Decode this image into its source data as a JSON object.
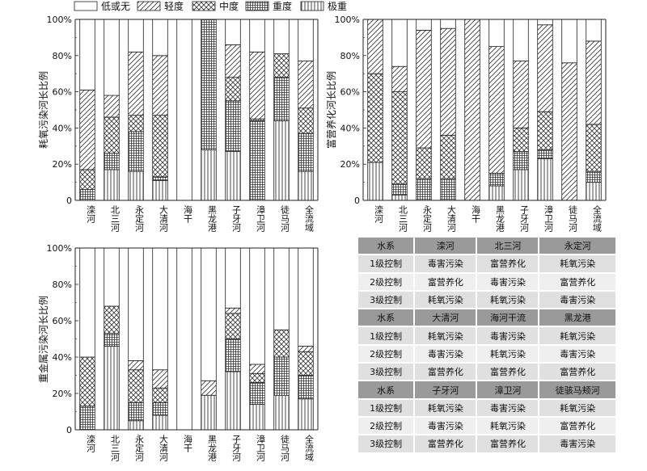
{
  "legend": [
    {
      "key": "none",
      "label": "低或无"
    },
    {
      "key": "light",
      "label": "轻度"
    },
    {
      "key": "medium",
      "label": "中度"
    },
    {
      "key": "heavy",
      "label": "重度"
    },
    {
      "key": "extreme",
      "label": "极重"
    }
  ],
  "chart_data": [
    {
      "type": "bar",
      "stacked": true,
      "ylabel": "耗氧污染河长比例",
      "ylim": [
        0,
        100
      ],
      "yticks": [
        "0",
        "20%",
        "40%",
        "60%",
        "80%",
        "100%"
      ],
      "categories": [
        "滦河",
        "北三河",
        "永定河",
        "大清河",
        "海干",
        "黑龙港",
        "子牙河",
        "漳卫河",
        "徒马河",
        "全流域"
      ],
      "series": [
        {
          "name": "极重",
          "values": [
            0,
            17,
            16,
            11,
            0,
            28,
            27,
            0,
            44,
            16
          ]
        },
        {
          "name": "重度",
          "values": [
            6,
            9,
            22,
            2,
            0,
            72,
            28,
            44,
            24,
            21
          ]
        },
        {
          "name": "中度",
          "values": [
            11,
            20,
            9,
            34,
            0,
            0,
            13,
            1,
            13,
            14
          ]
        },
        {
          "name": "轻度",
          "values": [
            44,
            12,
            35,
            33,
            0,
            0,
            18,
            37,
            0,
            26
          ]
        },
        {
          "name": "低或无",
          "values": [
            39,
            42,
            18,
            20,
            100,
            0,
            14,
            18,
            19,
            23
          ]
        }
      ]
    },
    {
      "type": "bar",
      "stacked": true,
      "ylabel": "富营养化河长比例",
      "ylim": [
        0,
        100
      ],
      "yticks": [
        "0",
        "20%",
        "40%",
        "60%",
        "80%",
        "100%"
      ],
      "categories": [
        "滦河",
        "北三河",
        "永定河",
        "大清河",
        "海干",
        "黑龙港",
        "子牙河",
        "漳卫河",
        "徒马河",
        "全流域"
      ],
      "series": [
        {
          "name": "极重",
          "values": [
            21,
            3,
            0,
            0,
            0,
            8,
            17,
            23,
            0,
            10
          ]
        },
        {
          "name": "重度",
          "values": [
            0,
            6,
            12,
            12,
            0,
            7,
            10,
            5,
            0,
            6
          ]
        },
        {
          "name": "中度",
          "values": [
            49,
            51,
            17,
            24,
            0,
            0,
            13,
            21,
            0,
            26
          ]
        },
        {
          "name": "轻度",
          "values": [
            30,
            14,
            65,
            59,
            100,
            70,
            37,
            48,
            76,
            46
          ]
        },
        {
          "name": "低或无",
          "values": [
            0,
            26,
            6,
            5,
            0,
            15,
            23,
            3,
            24,
            12
          ]
        }
      ]
    },
    {
      "type": "bar",
      "stacked": true,
      "ylabel": "重金属污染河长比例",
      "ylim": [
        0,
        100
      ],
      "yticks": [
        "0",
        "20%",
        "40%",
        "60%",
        "80%",
        "100%"
      ],
      "categories": [
        "滦河",
        "北三河",
        "永定河",
        "大清河",
        "海干",
        "黑龙港",
        "子牙河",
        "漳卫河",
        "徒马河",
        "全流域"
      ],
      "series": [
        {
          "name": "极重",
          "values": [
            0,
            46,
            5,
            8,
            0,
            19,
            32,
            14,
            19,
            17
          ]
        },
        {
          "name": "重度",
          "values": [
            13,
            7,
            10,
            7,
            0,
            0,
            18,
            12,
            21,
            13
          ]
        },
        {
          "name": "中度",
          "values": [
            27,
            15,
            18,
            8,
            0,
            0,
            14,
            5,
            15,
            13
          ]
        },
        {
          "name": "轻度",
          "values": [
            0,
            0,
            5,
            10,
            0,
            8,
            3,
            5,
            0,
            3
          ]
        },
        {
          "name": "低或无",
          "values": [
            60,
            32,
            62,
            67,
            100,
            73,
            33,
            64,
            45,
            54
          ]
        }
      ]
    }
  ],
  "table": {
    "groups": [
      {
        "header": [
          "水系",
          "滦河",
          "北三河",
          "永定河"
        ],
        "rows": [
          [
            "1级控制",
            "毒害污染",
            "富营养化",
            "耗氧污染"
          ],
          [
            "2级控制",
            "富营养化",
            "毒害污染",
            "富营养化"
          ],
          [
            "3级控制",
            "耗氧污染",
            "耗氧污染",
            "毒害污染"
          ]
        ]
      },
      {
        "header": [
          "水系",
          "大清河",
          "海河干流",
          "黑龙港"
        ],
        "rows": [
          [
            "1级控制",
            "耗氧污染",
            "毒害污染",
            "耗氧污染"
          ],
          [
            "2级控制",
            "毒害污染",
            "耗氧污染",
            "毒害污染"
          ],
          [
            "3级控制",
            "富营养化",
            "富营养化",
            "富营养化"
          ]
        ]
      },
      {
        "header": [
          "水系",
          "子牙河",
          "漳卫河",
          "徒骇马颊河"
        ],
        "rows": [
          [
            "1级控制",
            "耗氧污染",
            "毒害污染",
            "耗氧污染"
          ],
          [
            "2级控制",
            "毒害污染",
            "耗氧污染",
            "富营养化"
          ],
          [
            "3级控制",
            "富营养化",
            "富营养化",
            "毒害污染"
          ]
        ]
      }
    ]
  }
}
